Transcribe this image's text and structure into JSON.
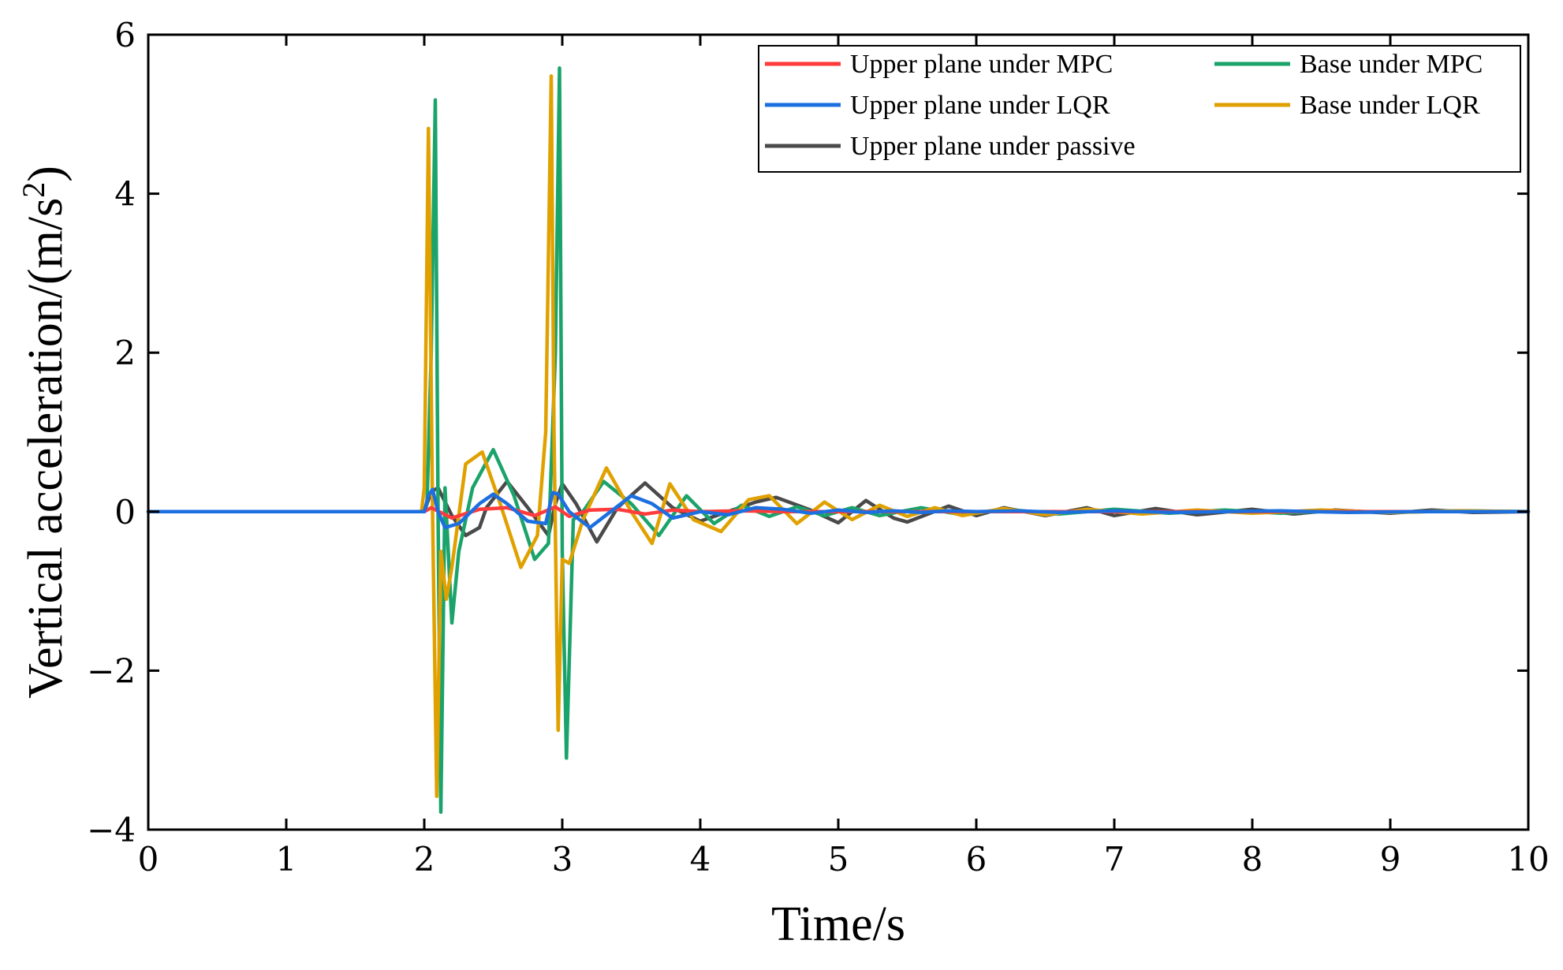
{
  "chart_data": {
    "type": "line",
    "title": "",
    "xlabel": "Time/s",
    "ylabel_main": "Vertical acceleration/(m/s",
    "ylabel_sup": "2",
    "ylabel_tail": ")",
    "xlim": [
      0,
      10
    ],
    "ylim": [
      -4,
      6
    ],
    "xticks": [
      0,
      1,
      2,
      3,
      4,
      5,
      6,
      7,
      8,
      9,
      10
    ],
    "yticks": [
      -4,
      -2,
      0,
      2,
      4,
      6
    ],
    "grid": false,
    "legend_position": "top-right",
    "series": [
      {
        "name": "Upper plane under passive",
        "color": "#4a4a4a",
        "legend_slot": 4,
        "x": [
          0,
          2.0,
          2.05,
          2.1,
          2.2,
          2.3,
          2.4,
          2.45,
          2.6,
          2.75,
          2.9,
          2.95,
          3.0,
          3.1,
          3.25,
          3.4,
          3.6,
          3.8,
          4.0,
          4.2,
          4.4,
          4.55,
          4.8,
          5.0,
          5.2,
          5.4,
          5.5,
          5.8,
          6.0,
          6.2,
          6.5,
          6.8,
          7.0,
          7.3,
          7.6,
          8.0,
          8.3,
          8.6,
          9.0,
          9.3,
          9.6,
          10
        ],
        "values": [
          0,
          0,
          0.25,
          0.3,
          -0.05,
          -0.3,
          -0.2,
          0.05,
          0.38,
          0.05,
          -0.3,
          0.1,
          0.35,
          0.1,
          -0.38,
          0.05,
          0.36,
          0.05,
          -0.12,
          0.0,
          0.12,
          0.18,
          0.02,
          -0.14,
          0.14,
          -0.08,
          -0.13,
          0.07,
          -0.05,
          0.05,
          -0.05,
          0.05,
          -0.05,
          0.04,
          -0.04,
          0.03,
          -0.03,
          0.02,
          -0.02,
          0.02,
          -0.01,
          0
        ]
      },
      {
        "name": "Base under MPC",
        "color": "#1aa36a",
        "legend_slot": 1,
        "x": [
          0,
          2.0,
          2.02,
          2.05,
          2.08,
          2.1,
          2.12,
          2.15,
          2.2,
          2.25,
          2.35,
          2.5,
          2.65,
          2.8,
          2.9,
          2.95,
          2.98,
          3.0,
          3.03,
          3.08,
          3.15,
          3.3,
          3.5,
          3.7,
          3.9,
          4.1,
          4.3,
          4.5,
          4.7,
          4.9,
          5.1,
          5.3,
          5.6,
          5.9,
          6.2,
          6.6,
          7.0,
          7.4,
          7.8,
          8.2,
          8.6,
          9.0,
          9.5,
          10
        ],
        "values": [
          0,
          0,
          0.1,
          2.0,
          5.18,
          0.0,
          -3.78,
          0.3,
          -1.4,
          -0.5,
          0.3,
          0.78,
          0.2,
          -0.6,
          -0.4,
          2.0,
          5.58,
          -0.5,
          -3.1,
          -0.1,
          0.0,
          0.38,
          0.1,
          -0.3,
          0.2,
          -0.15,
          0.08,
          -0.06,
          0.06,
          -0.05,
          0.05,
          -0.05,
          0.05,
          -0.04,
          0.03,
          -0.03,
          0.03,
          -0.02,
          0.02,
          -0.02,
          0.01,
          -0.01,
          0.01,
          0
        ]
      },
      {
        "name": "Base under LQR",
        "color": "#e0a100",
        "legend_slot": 3,
        "x": [
          0,
          1.98,
          2.0,
          2.03,
          2.06,
          2.09,
          2.12,
          2.16,
          2.2,
          2.3,
          2.42,
          2.55,
          2.7,
          2.82,
          2.88,
          2.92,
          2.94,
          2.97,
          3.0,
          3.05,
          3.15,
          3.32,
          3.5,
          3.65,
          3.78,
          3.95,
          4.15,
          4.35,
          4.5,
          4.7,
          4.9,
          5.1,
          5.3,
          5.5,
          5.7,
          5.9,
          6.2,
          6.5,
          6.8,
          7.2,
          7.6,
          8.0,
          8.5,
          9.0,
          9.5,
          10
        ],
        "values": [
          0,
          0,
          0.3,
          4.82,
          0.0,
          -3.58,
          -0.5,
          -1.1,
          -0.7,
          0.6,
          0.75,
          0.1,
          -0.7,
          -0.3,
          1.0,
          5.48,
          1.0,
          -2.75,
          -0.6,
          -0.65,
          -0.1,
          0.55,
          0.0,
          -0.4,
          0.35,
          -0.1,
          -0.25,
          0.15,
          0.2,
          -0.15,
          0.12,
          -0.1,
          0.08,
          -0.06,
          0.05,
          -0.05,
          0.04,
          -0.04,
          0.03,
          -0.03,
          0.02,
          -0.02,
          0.02,
          -0.01,
          0.01,
          0
        ]
      },
      {
        "name": "Upper plane under MPC",
        "color": "#ff3b3b",
        "legend_slot": 0,
        "x": [
          0,
          2.0,
          2.05,
          2.2,
          2.4,
          2.6,
          2.8,
          2.95,
          3.05,
          3.2,
          3.4,
          3.6,
          3.8,
          4.0,
          4.3,
          4.6,
          5.0,
          10
        ],
        "values": [
          0,
          0,
          0.05,
          -0.08,
          0.03,
          0.05,
          -0.05,
          0.06,
          -0.06,
          0.02,
          0.03,
          -0.03,
          0.02,
          0.0,
          0.01,
          0.0,
          0.0,
          0
        ]
      },
      {
        "name": "Upper plane under LQR",
        "color": "#1d6fe0",
        "legend_slot": 2,
        "x": [
          0,
          2.0,
          2.03,
          2.06,
          2.1,
          2.15,
          2.25,
          2.4,
          2.5,
          2.6,
          2.75,
          2.88,
          2.93,
          2.97,
          3.05,
          3.2,
          3.35,
          3.5,
          3.65,
          3.8,
          4.0,
          4.2,
          4.4,
          4.6,
          4.8,
          5.0,
          5.2,
          5.4,
          5.6,
          5.8,
          6.0,
          6.3,
          6.6,
          7.0,
          7.4,
          7.8,
          8.2,
          8.7,
          9.2,
          9.7,
          10
        ],
        "values": [
          0,
          0,
          0.2,
          0.28,
          0.0,
          -0.2,
          -0.15,
          0.1,
          0.22,
          0.1,
          -0.12,
          -0.15,
          0.24,
          0.22,
          0.0,
          -0.2,
          0.0,
          0.2,
          0.1,
          -0.08,
          0.0,
          -0.04,
          0.05,
          0.03,
          -0.02,
          0.02,
          -0.01,
          0.01,
          -0.01,
          0.01,
          0.0,
          0.01,
          -0.01,
          0.01,
          -0.01,
          0.0,
          0.01,
          -0.01,
          0.0,
          0.0,
          0
        ]
      }
    ]
  }
}
